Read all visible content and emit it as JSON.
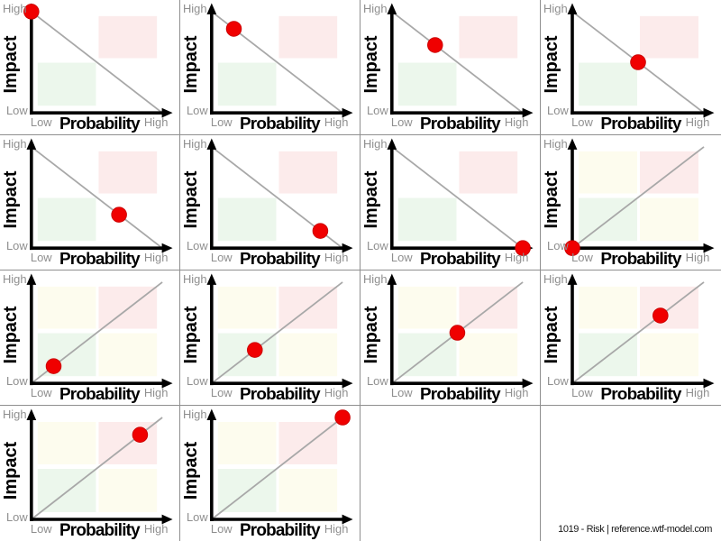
{
  "footer": {
    "attribution": "1019 - Risk | reference.wtf-model.com"
  },
  "chart_common": {
    "xlabel": "Probability",
    "ylabel": "Impact",
    "x_ticks": [
      "Low",
      "High"
    ],
    "y_ticks": [
      "Low",
      "High"
    ],
    "x_low": "Low",
    "x_high": "High",
    "y_low": "Low",
    "y_high": "High",
    "legend": "none",
    "grid": "off",
    "axis_range": {
      "x": [
        0,
        1
      ],
      "y": [
        0,
        1
      ]
    },
    "colors": {
      "dot": "#f00000",
      "dot_edge": "#cc0000",
      "trend_line": "#a8a8a8",
      "axis": "#000000",
      "tick_label": "#8f8f8f",
      "quadrant_high_risk_pink": "#fcebeb",
      "quadrant_low_risk_green": "#ecf7ec",
      "quadrant_neutral_cream": "#fdfcee"
    }
  },
  "chart_data": [
    {
      "type": "scatter",
      "trend": "descending",
      "point": {
        "probability": 0.0,
        "impact": 1.0
      }
    },
    {
      "type": "scatter",
      "trend": "descending",
      "point": {
        "probability": 0.17,
        "impact": 0.83
      }
    },
    {
      "type": "scatter",
      "trend": "descending",
      "point": {
        "probability": 0.33,
        "impact": 0.67
      }
    },
    {
      "type": "scatter",
      "trend": "descending",
      "point": {
        "probability": 0.5,
        "impact": 0.5
      }
    },
    {
      "type": "scatter",
      "trend": "descending",
      "point": {
        "probability": 0.67,
        "impact": 0.33
      }
    },
    {
      "type": "scatter",
      "trend": "descending",
      "point": {
        "probability": 0.83,
        "impact": 0.17
      }
    },
    {
      "type": "scatter",
      "trend": "descending",
      "point": {
        "probability": 1.0,
        "impact": 0.0
      }
    },
    {
      "type": "scatter",
      "trend": "ascending",
      "point": {
        "probability": 0.0,
        "impact": 0.0
      }
    },
    {
      "type": "scatter",
      "trend": "ascending",
      "point": {
        "probability": 0.17,
        "impact": 0.17
      }
    },
    {
      "type": "scatter",
      "trend": "ascending",
      "point": {
        "probability": 0.33,
        "impact": 0.33
      }
    },
    {
      "type": "scatter",
      "trend": "ascending",
      "point": {
        "probability": 0.5,
        "impact": 0.5
      }
    },
    {
      "type": "scatter",
      "trend": "ascending",
      "point": {
        "probability": 0.67,
        "impact": 0.67
      }
    },
    {
      "type": "scatter",
      "trend": "ascending",
      "point": {
        "probability": 0.83,
        "impact": 0.83
      }
    },
    {
      "type": "scatter",
      "trend": "ascending",
      "point": {
        "probability": 1.0,
        "impact": 1.0
      }
    }
  ]
}
